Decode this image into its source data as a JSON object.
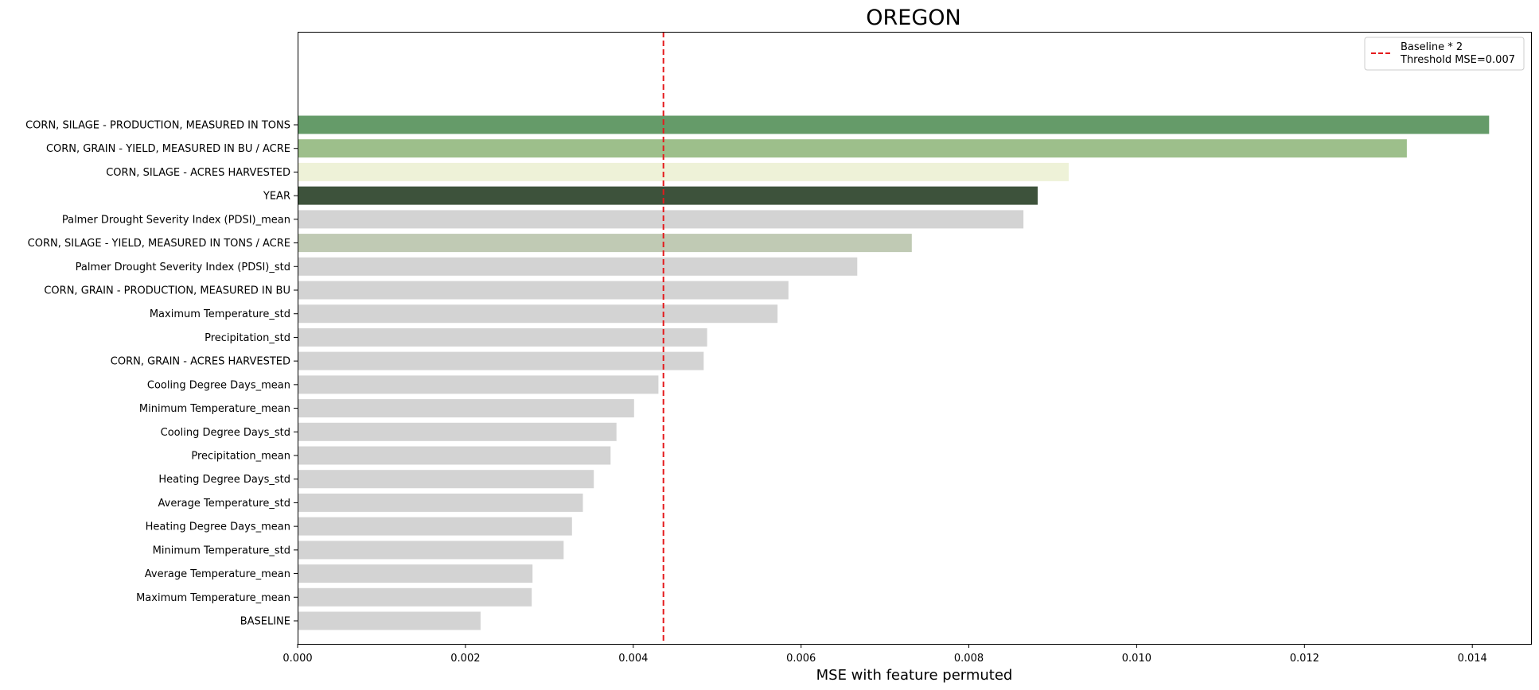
{
  "chart_data": {
    "type": "bar",
    "orientation": "horizontal",
    "title": "OREGON",
    "xlabel": "MSE with feature permuted",
    "ylabel": "",
    "xlim": [
      0,
      0.0147
    ],
    "xticks": [
      "0.000",
      "0.002",
      "0.004",
      "0.006",
      "0.008",
      "0.010",
      "0.012",
      "0.014"
    ],
    "grid": false,
    "categories": [
      "CORN, SILAGE - PRODUCTION, MEASURED IN TONS",
      "CORN, GRAIN - YIELD, MEASURED IN BU / ACRE",
      "CORN, SILAGE - ACRES HARVESTED",
      "YEAR",
      "Palmer Drought Severity Index (PDSI)_mean",
      "CORN, SILAGE - YIELD, MEASURED IN TONS / ACRE",
      "Palmer Drought Severity Index (PDSI)_std",
      "CORN, GRAIN - PRODUCTION, MEASURED IN BU",
      "Maximum Temperature_std",
      "Precipitation_std",
      "CORN, GRAIN - ACRES HARVESTED",
      "Cooling Degree Days_mean",
      "Minimum Temperature_mean",
      "Cooling Degree Days_std",
      "Precipitation_mean",
      "Heating Degree Days_std",
      "Average Temperature_std",
      "Heating Degree Days_mean",
      "Minimum Temperature_std",
      "Average Temperature_mean",
      "Maximum Temperature_mean",
      "BASELINE"
    ],
    "values": [
      0.0142,
      0.01322,
      0.00919,
      0.00882,
      0.00865,
      0.00732,
      0.00667,
      0.00585,
      0.00572,
      0.00488,
      0.00484,
      0.0043,
      0.00401,
      0.0038,
      0.00373,
      0.00353,
      0.0034,
      0.00327,
      0.00317,
      0.0028,
      0.00279,
      0.00218
    ],
    "colors": [
      "#659b69",
      "#9dbf8b",
      "#eef2d8",
      "#3d523b",
      "#d3d3d3",
      "#c0cab4",
      "#d3d3d3",
      "#d3d3d3",
      "#d3d3d3",
      "#d3d3d3",
      "#d3d3d3",
      "#d3d3d3",
      "#d3d3d3",
      "#d3d3d3",
      "#d3d3d3",
      "#d3d3d3",
      "#d3d3d3",
      "#d3d3d3",
      "#d3d3d3",
      "#d3d3d3",
      "#d3d3d3",
      "#d3d3d3"
    ],
    "threshold": {
      "value": 0.00436,
      "color": "#e41a1c",
      "style": "dashed"
    },
    "legend": {
      "placement": "top-right",
      "entries": [
        "Baseline * 2",
        "Threshold MSE=0.007"
      ]
    }
  }
}
